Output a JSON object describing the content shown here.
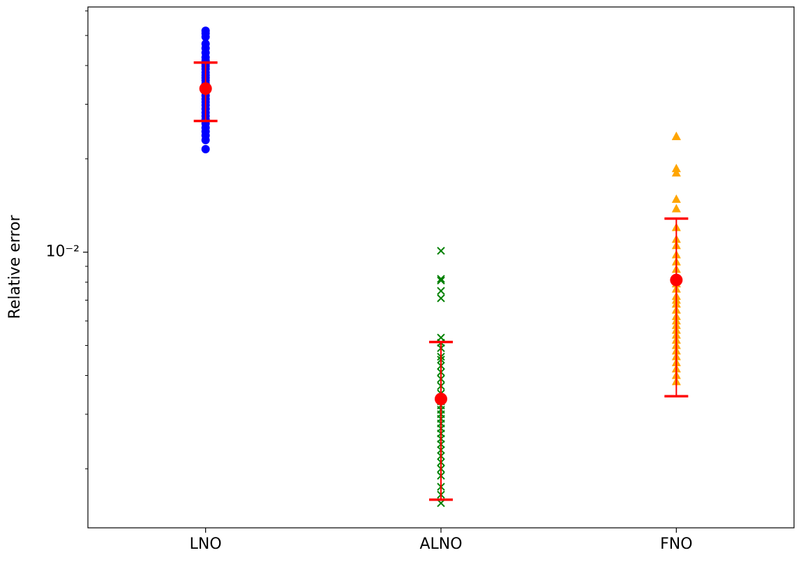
{
  "chart_data": {
    "type": "scatter",
    "y_label": "Relative error",
    "categories": [
      "LNO",
      "ALNO",
      "FNO"
    ],
    "y_log": true,
    "ylim": [
      0.00129,
      0.0618
    ],
    "yticks": [
      {
        "value": 0.01,
        "label": "10⁻²"
      }
    ],
    "yminorticks": [
      0.002,
      0.003,
      0.004,
      0.005,
      0.006,
      0.007,
      0.008,
      0.009,
      0.02,
      0.03,
      0.04,
      0.05,
      0.06
    ],
    "series": [
      {
        "marker": "circle",
        "color": "#0000ff",
        "values": [
          0.0518,
          0.0508,
          0.0495,
          0.047,
          0.0455,
          0.044,
          0.0425,
          0.0415,
          0.0405,
          0.0398,
          0.039,
          0.038,
          0.0372,
          0.0365,
          0.0358,
          0.035,
          0.0342,
          0.0335,
          0.0328,
          0.032,
          0.0312,
          0.0305,
          0.0298,
          0.029,
          0.0282,
          0.0275,
          0.0268,
          0.026,
          0.0252,
          0.0245,
          0.0238,
          0.023,
          0.0215
        ]
      },
      {
        "marker": "x",
        "color": "#008000",
        "values": [
          0.0101,
          0.0082,
          0.0081,
          0.0075,
          0.0071,
          0.0053,
          0.0051,
          0.0049,
          0.0046,
          0.0045,
          0.0043,
          0.0041,
          0.0039,
          0.0037,
          0.0035,
          0.0034,
          0.0033,
          0.0032,
          0.0031,
          0.003,
          0.0029,
          0.0028,
          0.0027,
          0.0026,
          0.0025,
          0.0024,
          0.0023,
          0.0022,
          0.0021,
          0.002,
          0.0019,
          0.00175,
          0.00165,
          0.00155
        ]
      },
      {
        "marker": "triangle",
        "color": "#ffa500",
        "values": [
          0.0236,
          0.0236,
          0.0186,
          0.018,
          0.0148,
          0.0138,
          0.012,
          0.011,
          0.0105,
          0.0098,
          0.0093,
          0.0088,
          0.0083,
          0.0079,
          0.0076,
          0.0072,
          0.007,
          0.0068,
          0.0065,
          0.0062,
          0.006,
          0.0058,
          0.0056,
          0.0054,
          0.0052,
          0.005,
          0.0048,
          0.0046,
          0.0044,
          0.0042,
          0.004,
          0.00382
        ]
      }
    ],
    "means": [
      0.0337,
      0.00336,
      0.00813
    ],
    "errors": [
      0.0072,
      0.00177,
      0.0047
    ],
    "summary_color": "#ff0000"
  }
}
